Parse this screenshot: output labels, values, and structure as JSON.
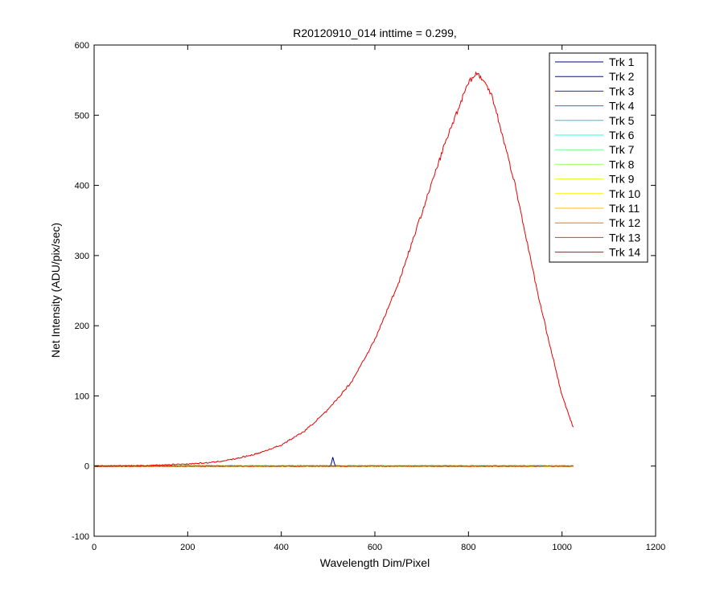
{
  "chart_data": {
    "type": "line",
    "title": "R20120910_014 inttime = 0.299,",
    "xlabel": "Wavelength Dim/Pixel",
    "ylabel": "Net Intensity (ADU/pix/sec)",
    "xlim": [
      0,
      1200
    ],
    "ylim": [
      -100,
      600
    ],
    "xticks": [
      0,
      200,
      400,
      600,
      800,
      1000,
      1200
    ],
    "yticks": [
      -100,
      0,
      100,
      200,
      300,
      400,
      500,
      600
    ],
    "grid": false,
    "legend_position": "top-right",
    "series": [
      {
        "name": "Trk 1",
        "color": "#00008f",
        "x": [
          0,
          505,
          510,
          515,
          1024
        ],
        "values": [
          0,
          0,
          12,
          0,
          0
        ]
      },
      {
        "name": "Trk 2",
        "color": "#0000df",
        "x": [
          0,
          1024
        ],
        "values": [
          0,
          0
        ]
      },
      {
        "name": "Trk 3",
        "color": "#0030ff",
        "x": [
          0,
          1024
        ],
        "values": [
          0,
          0
        ]
      },
      {
        "name": "Trk 4",
        "color": "#0080ff",
        "x": [
          0,
          1024
        ],
        "values": [
          0,
          0
        ]
      },
      {
        "name": "Trk 5",
        "color": "#00cfff",
        "x": [
          0,
          1024
        ],
        "values": [
          0,
          0
        ]
      },
      {
        "name": "Trk 6",
        "color": "#20ffdf",
        "x": [
          0,
          1024
        ],
        "values": [
          0,
          0
        ]
      },
      {
        "name": "Trk 7",
        "color": "#70ff8f",
        "x": [
          0,
          1024
        ],
        "values": [
          0,
          0
        ]
      },
      {
        "name": "Trk 8",
        "color": "#9fff60",
        "x": [
          0,
          1024
        ],
        "values": [
          0,
          0
        ]
      },
      {
        "name": "Trk 9",
        "color": "#dfff20",
        "x": [
          0,
          1024
        ],
        "values": [
          0,
          0
        ]
      },
      {
        "name": "Trk 10",
        "color": "#ffef00",
        "x": [
          0,
          1024
        ],
        "values": [
          0,
          0
        ]
      },
      {
        "name": "Trk 11",
        "color": "#ffbf00",
        "x": [
          0,
          1024
        ],
        "values": [
          0,
          0
        ]
      },
      {
        "name": "Trk 12",
        "color": "#ff7000",
        "x": [
          0,
          1024
        ],
        "values": [
          0,
          0
        ]
      },
      {
        "name": "Trk 13",
        "color": "#ff3000",
        "x": [
          0,
          1024
        ],
        "values": [
          0,
          0
        ]
      },
      {
        "name": "Trk 14",
        "color": "#e60000",
        "x": [
          0,
          100,
          200,
          250,
          300,
          350,
          400,
          450,
          500,
          550,
          600,
          650,
          700,
          750,
          800,
          820,
          850,
          900,
          950,
          1000,
          1024
        ],
        "values": [
          0,
          0.5,
          3,
          5,
          10,
          18,
          30,
          50,
          80,
          120,
          180,
          260,
          360,
          460,
          548,
          560,
          530,
          400,
          240,
          100,
          55
        ]
      }
    ]
  }
}
